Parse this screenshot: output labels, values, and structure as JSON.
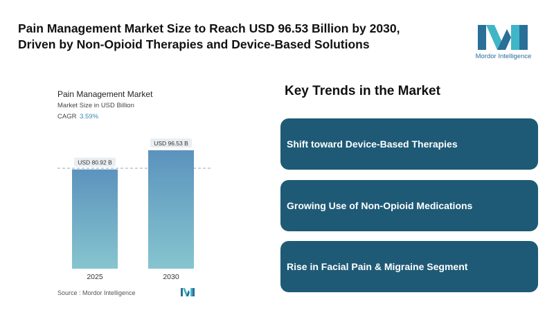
{
  "headline": {
    "line1": "Pain Management Market Size to Reach USD 96.53 Billion by 2030,",
    "line2": "Driven by Non-Opioid Therapies and Device-Based Solutions"
  },
  "logo": {
    "text": "Mordor Intelligence",
    "icon": "mordor-intelligence-logo"
  },
  "chart_data": {
    "type": "bar",
    "title": "Pain Management Market",
    "subtitle": "Market Size in USD Billion",
    "cagr_label": "CAGR",
    "cagr_value": "3.59%",
    "categories": [
      "2025",
      "2030"
    ],
    "values": [
      80.92,
      96.53
    ],
    "data_labels": [
      "USD 80.92 B",
      "USD 96.53 B"
    ],
    "ylim": [
      0,
      96.53
    ],
    "grid": false,
    "colors": {
      "bar_top": "#5b93bd",
      "bar_bottom": "#86c5cf",
      "label_bg": "#e9eef2"
    }
  },
  "source": "Source : Mordor Intelligence",
  "trends": {
    "title": "Key Trends in the Market",
    "items": [
      "Shift toward Device-Based Therapies",
      "Growing Use of Non-Opioid Medications",
      "Rise in Facial Pain & Migraine Segment"
    ],
    "card_color": "#1e5a76"
  }
}
